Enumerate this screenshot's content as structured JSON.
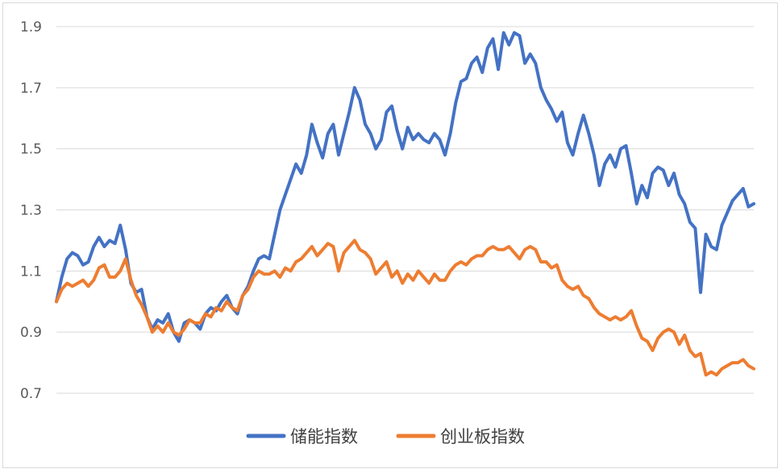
{
  "chart_data": {
    "type": "line",
    "title": "",
    "xlabel": "",
    "ylabel": "",
    "ylim": [
      0.7,
      1.9
    ],
    "yticks": [
      "1.9",
      "1.7",
      "1.5",
      "1.3",
      "1.1",
      "0.9",
      "0.7"
    ],
    "grid": true,
    "legend_position": "bottom",
    "series": [
      {
        "name": "储能指数",
        "color": "#4472c4",
        "values": [
          1.0,
          1.08,
          1.14,
          1.16,
          1.15,
          1.12,
          1.13,
          1.18,
          1.21,
          1.18,
          1.2,
          1.19,
          1.25,
          1.17,
          1.06,
          1.03,
          1.04,
          0.95,
          0.91,
          0.94,
          0.93,
          0.96,
          0.9,
          0.87,
          0.93,
          0.94,
          0.93,
          0.91,
          0.96,
          0.98,
          0.97,
          1.0,
          1.02,
          0.98,
          0.96,
          1.02,
          1.05,
          1.1,
          1.14,
          1.15,
          1.14,
          1.22,
          1.3,
          1.35,
          1.4,
          1.45,
          1.42,
          1.48,
          1.58,
          1.52,
          1.47,
          1.55,
          1.58,
          1.48,
          1.55,
          1.62,
          1.7,
          1.66,
          1.58,
          1.55,
          1.5,
          1.53,
          1.62,
          1.64,
          1.56,
          1.5,
          1.57,
          1.53,
          1.55,
          1.53,
          1.52,
          1.55,
          1.53,
          1.48,
          1.55,
          1.65,
          1.72,
          1.73,
          1.78,
          1.8,
          1.75,
          1.83,
          1.86,
          1.76,
          1.88,
          1.84,
          1.88,
          1.87,
          1.78,
          1.81,
          1.78,
          1.7,
          1.66,
          1.63,
          1.59,
          1.62,
          1.52,
          1.48,
          1.55,
          1.61,
          1.55,
          1.48,
          1.38,
          1.45,
          1.48,
          1.44,
          1.5,
          1.51,
          1.42,
          1.32,
          1.38,
          1.34,
          1.42,
          1.44,
          1.43,
          1.38,
          1.42,
          1.35,
          1.32,
          1.26,
          1.24,
          1.03,
          1.22,
          1.18,
          1.17,
          1.25,
          1.29,
          1.33,
          1.35,
          1.37,
          1.31,
          1.32
        ]
      },
      {
        "name": "创业板指数",
        "color": "#ed7d31",
        "values": [
          1.0,
          1.04,
          1.06,
          1.05,
          1.06,
          1.07,
          1.05,
          1.07,
          1.11,
          1.12,
          1.08,
          1.08,
          1.1,
          1.14,
          1.07,
          1.02,
          0.99,
          0.95,
          0.9,
          0.92,
          0.9,
          0.93,
          0.9,
          0.89,
          0.91,
          0.94,
          0.93,
          0.93,
          0.96,
          0.95,
          0.98,
          0.97,
          1.0,
          0.98,
          0.97,
          1.02,
          1.04,
          1.08,
          1.1,
          1.09,
          1.09,
          1.1,
          1.08,
          1.11,
          1.1,
          1.13,
          1.14,
          1.16,
          1.18,
          1.15,
          1.17,
          1.19,
          1.18,
          1.1,
          1.16,
          1.18,
          1.2,
          1.17,
          1.16,
          1.14,
          1.09,
          1.11,
          1.13,
          1.08,
          1.1,
          1.06,
          1.09,
          1.07,
          1.1,
          1.08,
          1.06,
          1.09,
          1.07,
          1.07,
          1.1,
          1.12,
          1.13,
          1.12,
          1.14,
          1.15,
          1.15,
          1.17,
          1.18,
          1.17,
          1.17,
          1.18,
          1.16,
          1.14,
          1.17,
          1.18,
          1.17,
          1.13,
          1.13,
          1.11,
          1.12,
          1.07,
          1.05,
          1.04,
          1.05,
          1.02,
          1.01,
          0.98,
          0.96,
          0.95,
          0.94,
          0.95,
          0.94,
          0.95,
          0.97,
          0.92,
          0.88,
          0.87,
          0.84,
          0.88,
          0.9,
          0.91,
          0.9,
          0.86,
          0.89,
          0.84,
          0.82,
          0.83,
          0.76,
          0.77,
          0.76,
          0.78,
          0.79,
          0.8,
          0.8,
          0.81,
          0.79,
          0.78
        ]
      }
    ]
  }
}
